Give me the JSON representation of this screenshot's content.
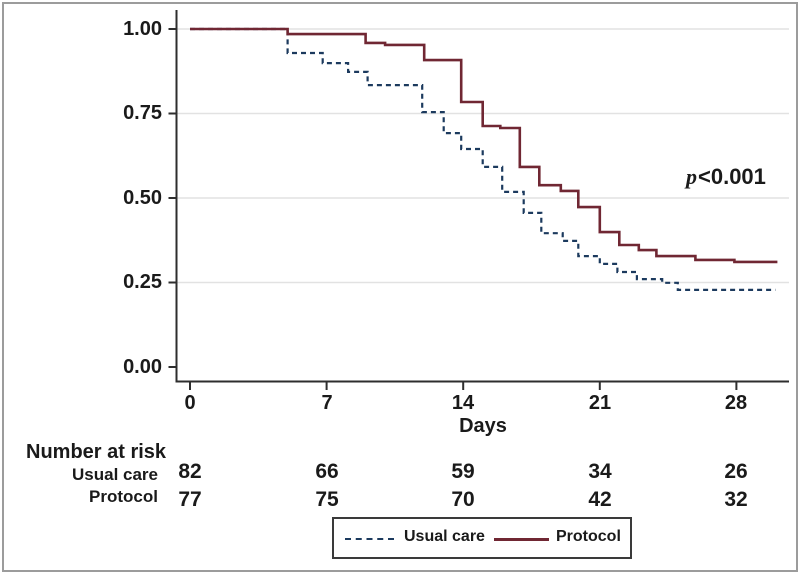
{
  "palette": {
    "usual_care": "#1c3a5e",
    "protocol": "#702733",
    "grid": "#e2e2e2",
    "axis": "#2e2e2e"
  },
  "chart_data": {
    "type": "line",
    "subtype": "kaplan-meier-step",
    "title": "",
    "xlabel": "Days",
    "ylabel": "",
    "xlim": [
      0,
      30.5
    ],
    "ylim": [
      0,
      1
    ],
    "grid": "horizontal",
    "legend_position": "bottom",
    "x_ticks": [
      "0",
      "7",
      "14",
      "21",
      "28"
    ],
    "x_tick_values": [
      0,
      7,
      14,
      21,
      28
    ],
    "y_ticks": [
      "1.00",
      "0.75",
      "0.50",
      "0.25",
      "0.00"
    ],
    "y_tick_values": [
      1.0,
      0.75,
      0.5,
      0.25,
      0.0
    ],
    "p_label": "p",
    "p_value": "<0.001",
    "series": [
      {
        "name": "Usual care",
        "style": "dashed",
        "color": "#1c3a5e",
        "end_x": 30.0,
        "points": [
          [
            0,
            1.0
          ],
          [
            5,
            0.929
          ],
          [
            6.8,
            0.899
          ],
          [
            8.1,
            0.873
          ],
          [
            9.1,
            0.834
          ],
          [
            11.9,
            0.754
          ],
          [
            13,
            0.692
          ],
          [
            13.9,
            0.645
          ],
          [
            15,
            0.592
          ],
          [
            16,
            0.518
          ],
          [
            17.1,
            0.456
          ],
          [
            18,
            0.396
          ],
          [
            19.1,
            0.373
          ],
          [
            19.9,
            0.328
          ],
          [
            21,
            0.305
          ],
          [
            21.9,
            0.281
          ],
          [
            22.9,
            0.26
          ],
          [
            24.2,
            0.249
          ],
          [
            25,
            0.228
          ]
        ]
      },
      {
        "name": "Protocol",
        "style": "solid",
        "color": "#702733",
        "end_x": 30.1,
        "points": [
          [
            0,
            1.0
          ],
          [
            5,
            0.985
          ],
          [
            9,
            0.959
          ],
          [
            10,
            0.953
          ],
          [
            12,
            0.908
          ],
          [
            13.9,
            0.784
          ],
          [
            15,
            0.713
          ],
          [
            15.9,
            0.707
          ],
          [
            16.9,
            0.592
          ],
          [
            17.9,
            0.538
          ],
          [
            19,
            0.521
          ],
          [
            19.9,
            0.473
          ],
          [
            21,
            0.399
          ],
          [
            22,
            0.361
          ],
          [
            23,
            0.346
          ],
          [
            23.9,
            0.328
          ],
          [
            25.9,
            0.317
          ],
          [
            27.9,
            0.311
          ]
        ]
      }
    ]
  },
  "risk_table": {
    "title": "Number at risk",
    "columns": [
      "0",
      "7",
      "14",
      "21",
      "28"
    ],
    "rows": [
      {
        "label": "Usual care",
        "values": [
          "82",
          "66",
          "59",
          "34",
          "26"
        ]
      },
      {
        "label": "Protocol",
        "values": [
          "77",
          "75",
          "70",
          "42",
          "32"
        ]
      }
    ]
  },
  "legend": {
    "items": [
      {
        "label": "Usual care",
        "style": "dashed"
      },
      {
        "label": "Protocol",
        "style": "solid"
      }
    ]
  }
}
